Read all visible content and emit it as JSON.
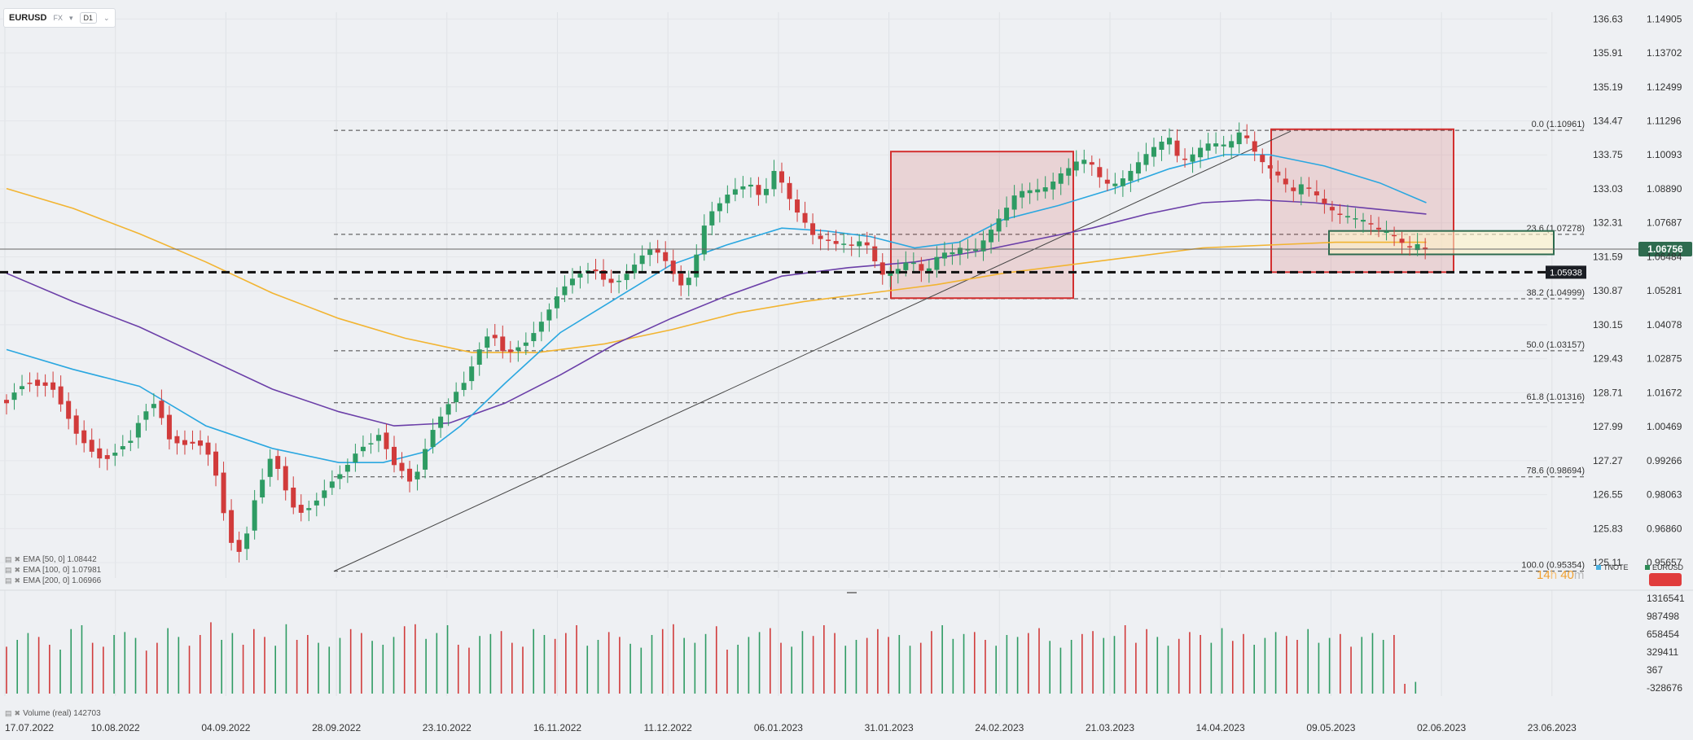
{
  "header": {
    "symbol": "EURUSD",
    "market": "FX",
    "timeframe": "D1"
  },
  "legend": [
    {
      "label": "EMA  [50, 0]  1.08442"
    },
    {
      "label": "EMA  [100, 0]  1.07981"
    },
    {
      "label": "EMA  [200, 0]  1.06966"
    }
  ],
  "volume_legend": "Volume  (real)   142703",
  "timer": {
    "hours": "14",
    "h_unit": "h",
    "minutes": "40",
    "m_unit": "m"
  },
  "top_legend": [
    {
      "label": "TNOTE",
      "color": "#4ab0e0"
    },
    {
      "label": "EURUSD",
      "color": "#2e8b57"
    }
  ],
  "colors": {
    "up": "#2e9b63",
    "down": "#d13b3b",
    "ema50": "#2aa7e0",
    "ema100": "#6b3fa8",
    "ema200": "#f2b431",
    "box_red": "#d32f2f",
    "box_green": "#2e6b4f"
  },
  "chart_data": {
    "type": "candlestick",
    "symbol": "EURUSD",
    "x_dates": [
      "17.07.2022",
      "10.08.2022",
      "04.09.2022",
      "28.09.2022",
      "23.10.2022",
      "16.11.2022",
      "11.12.2022",
      "06.01.2023",
      "31.01.2023",
      "24.02.2023",
      "21.03.2023",
      "14.04.2023",
      "09.05.2023",
      "02.06.2023",
      "23.06.2023"
    ],
    "y_right_ticks": [
      "1.14905",
      "1.13702",
      "1.12499",
      "1.11296",
      "1.10093",
      "1.08890",
      "1.07687",
      "1.06484",
      "1.05281",
      "1.04078",
      "1.02875",
      "1.01672",
      "1.00469",
      "0.99266",
      "0.98063",
      "0.96860",
      "0.95657"
    ],
    "y_left_ticks": [
      "136.63",
      "135.91",
      "135.19",
      "134.47",
      "133.75",
      "133.03",
      "132.31",
      "131.59",
      "130.87",
      "130.15",
      "129.43",
      "128.71",
      "127.99",
      "127.27",
      "126.55",
      "125.83",
      "125.11"
    ],
    "ylim": [
      0.954,
      1.15
    ],
    "current_price": "1.06756",
    "support_level": "1.05938",
    "fibonacci": [
      {
        "label": "0.0 (1.10961)",
        "value": 1.10961
      },
      {
        "label": "23.6 (1.07278)",
        "value": 1.07278
      },
      {
        "label": "38.2 (1.04999)",
        "value": 1.04999
      },
      {
        "label": "50.0 (1.03157)",
        "value": 1.03157
      },
      {
        "label": "61.8 (1.01316)",
        "value": 1.01316
      },
      {
        "label": "78.6 (0.98694)",
        "value": 0.98694
      },
      {
        "label": "100.0 (0.95354)",
        "value": 0.95354
      }
    ],
    "ema": [
      {
        "name": "EMA [50, 0]",
        "last": 1.08442
      },
      {
        "name": "EMA [100, 0]",
        "last": 1.07981
      },
      {
        "name": "EMA [200, 0]",
        "last": 1.06966
      }
    ],
    "price_path": [
      [
        0,
        1.013
      ],
      [
        10,
        1.02
      ],
      [
        20,
        1.022
      ],
      [
        28,
        1.02
      ],
      [
        40,
        1.018
      ],
      [
        50,
        1.01
      ],
      [
        62,
        1.002
      ],
      [
        75,
        0.998
      ],
      [
        88,
        0.994
      ],
      [
        100,
        0.996
      ],
      [
        112,
        0.998
      ],
      [
        122,
        1.007
      ],
      [
        135,
        1.014
      ],
      [
        147,
        1.002
      ],
      [
        160,
        0.999
      ],
      [
        170,
        0.998
      ],
      [
        180,
        0.995
      ],
      [
        190,
        0.985
      ],
      [
        198,
        0.97
      ],
      [
        206,
        0.961
      ],
      [
        214,
        0.963
      ],
      [
        222,
        0.978
      ],
      [
        230,
        0.985
      ],
      [
        240,
        0.994
      ],
      [
        250,
        0.982
      ],
      [
        262,
        0.973
      ],
      [
        275,
        0.978
      ],
      [
        290,
        0.985
      ],
      [
        305,
        0.988
      ],
      [
        318,
        0.995
      ],
      [
        330,
        0.999
      ],
      [
        338,
        1.004
      ],
      [
        347,
        0.994
      ],
      [
        357,
        0.99
      ],
      [
        367,
        0.983
      ],
      [
        375,
        0.992
      ],
      [
        385,
        1.002
      ],
      [
        395,
        1.01
      ],
      [
        405,
        1.018
      ],
      [
        415,
        1.023
      ],
      [
        423,
        1.03
      ],
      [
        433,
        1.036
      ],
      [
        443,
        1.034
      ],
      [
        450,
        1.028
      ],
      [
        460,
        1.032
      ],
      [
        470,
        1.036
      ],
      [
        480,
        1.042
      ],
      [
        490,
        1.047
      ],
      [
        498,
        1.051
      ],
      [
        510,
        1.055
      ],
      [
        520,
        1.058
      ],
      [
        530,
        1.061
      ],
      [
        540,
        1.058
      ],
      [
        550,
        1.057
      ],
      [
        560,
        1.059
      ],
      [
        570,
        1.062
      ],
      [
        580,
        1.066
      ],
      [
        592,
        1.065
      ],
      [
        602,
        1.06
      ],
      [
        612,
        1.055
      ],
      [
        622,
        1.065
      ],
      [
        632,
        1.078
      ],
      [
        642,
        1.081
      ],
      [
        652,
        1.086
      ],
      [
        662,
        1.09
      ],
      [
        672,
        1.092
      ],
      [
        682,
        1.087
      ],
      [
        694,
        1.096
      ],
      [
        702,
        1.088
      ],
      [
        711,
        1.08
      ],
      [
        719,
        1.077
      ],
      [
        730,
        1.072
      ],
      [
        740,
        1.073
      ],
      [
        748,
        1.071
      ],
      [
        756,
        1.07
      ],
      [
        764,
        1.068
      ],
      [
        772,
        1.069
      ],
      [
        780,
        1.066
      ],
      [
        786,
        1.06
      ],
      [
        792,
        1.058
      ],
      [
        800,
        1.061
      ],
      [
        808,
        1.063
      ],
      [
        816,
        1.066
      ],
      [
        824,
        1.06
      ],
      [
        832,
        1.059
      ],
      [
        840,
        1.063
      ],
      [
        848,
        1.065
      ],
      [
        856,
        1.066
      ],
      [
        864,
        1.07
      ],
      [
        872,
        1.068
      ],
      [
        882,
        1.072
      ],
      [
        892,
        1.076
      ],
      [
        902,
        1.08
      ],
      [
        912,
        1.086
      ],
      [
        922,
        1.088
      ],
      [
        932,
        1.09
      ],
      [
        942,
        1.092
      ],
      [
        950,
        1.095
      ],
      [
        960,
        1.096
      ],
      [
        970,
        1.098
      ],
      [
        980,
        1.096
      ],
      [
        990,
        1.091
      ],
      [
        1000,
        1.092
      ],
      [
        1010,
        1.095
      ],
      [
        1020,
        1.098
      ],
      [
        1032,
        1.101
      ],
      [
        1040,
        1.103
      ],
      [
        1050,
        1.106
      ],
      [
        1058,
        1.1
      ],
      [
        1066,
        1.101
      ],
      [
        1074,
        1.104
      ],
      [
        1082,
        1.106
      ],
      [
        1090,
        1.105
      ],
      [
        1098,
        1.103
      ],
      [
        1106,
        1.104
      ],
      [
        1114,
        1.108
      ],
      [
        1122,
        1.106
      ],
      [
        1130,
        1.101
      ],
      [
        1138,
        1.099
      ],
      [
        1146,
        1.096
      ],
      [
        1154,
        1.091
      ],
      [
        1162,
        1.087
      ],
      [
        1170,
        1.089
      ],
      [
        1178,
        1.087
      ],
      [
        1186,
        1.085
      ],
      [
        1194,
        1.083
      ],
      [
        1202,
        1.082
      ],
      [
        1210,
        1.081
      ],
      [
        1218,
        1.079
      ],
      [
        1226,
        1.077
      ],
      [
        1234,
        1.074
      ],
      [
        1242,
        1.072
      ],
      [
        1250,
        1.073
      ],
      [
        1258,
        1.071
      ],
      [
        1266,
        1.07
      ],
      [
        1274,
        1.071
      ],
      [
        1282,
        1.068
      ]
    ],
    "ema50_path": [
      [
        0,
        1.032
      ],
      [
        60,
        1.025
      ],
      [
        120,
        1.019
      ],
      [
        180,
        1.005
      ],
      [
        240,
        0.997
      ],
      [
        300,
        0.992
      ],
      [
        340,
        0.992
      ],
      [
        380,
        0.996
      ],
      [
        410,
        1.005
      ],
      [
        450,
        1.02
      ],
      [
        500,
        1.038
      ],
      [
        550,
        1.05
      ],
      [
        600,
        1.062
      ],
      [
        650,
        1.069
      ],
      [
        700,
        1.075
      ],
      [
        740,
        1.074
      ],
      [
        780,
        1.072
      ],
      [
        820,
        1.068
      ],
      [
        860,
        1.07
      ],
      [
        900,
        1.078
      ],
      [
        950,
        1.083
      ],
      [
        1000,
        1.089
      ],
      [
        1050,
        1.096
      ],
      [
        1100,
        1.101
      ],
      [
        1140,
        1.101
      ],
      [
        1190,
        1.097
      ],
      [
        1240,
        1.091
      ],
      [
        1282,
        1.084
      ]
    ],
    "ema100_path": [
      [
        0,
        1.059
      ],
      [
        60,
        1.049
      ],
      [
        120,
        1.04
      ],
      [
        180,
        1.029
      ],
      [
        240,
        1.018
      ],
      [
        300,
        1.01
      ],
      [
        350,
        1.005
      ],
      [
        400,
        1.006
      ],
      [
        450,
        1.013
      ],
      [
        500,
        1.023
      ],
      [
        550,
        1.034
      ],
      [
        600,
        1.043
      ],
      [
        650,
        1.051
      ],
      [
        700,
        1.058
      ],
      [
        760,
        1.061
      ],
      [
        820,
        1.063
      ],
      [
        880,
        1.067
      ],
      [
        930,
        1.071
      ],
      [
        980,
        1.075
      ],
      [
        1030,
        1.08
      ],
      [
        1080,
        1.084
      ],
      [
        1130,
        1.085
      ],
      [
        1180,
        1.084
      ],
      [
        1230,
        1.082
      ],
      [
        1282,
        1.08
      ]
    ],
    "ema200_path": [
      [
        0,
        1.089
      ],
      [
        60,
        1.082
      ],
      [
        120,
        1.073
      ],
      [
        180,
        1.063
      ],
      [
        240,
        1.052
      ],
      [
        300,
        1.043
      ],
      [
        360,
        1.036
      ],
      [
        420,
        1.031
      ],
      [
        480,
        1.031
      ],
      [
        540,
        1.034
      ],
      [
        600,
        1.039
      ],
      [
        660,
        1.045
      ],
      [
        720,
        1.049
      ],
      [
        780,
        1.052
      ],
      [
        840,
        1.055
      ],
      [
        900,
        1.059
      ],
      [
        960,
        1.062
      ],
      [
        1020,
        1.065
      ],
      [
        1080,
        1.068
      ],
      [
        1140,
        1.069
      ],
      [
        1200,
        1.07
      ],
      [
        1282,
        1.07
      ]
    ],
    "volume_ticks": [
      "1316541",
      "987498",
      "658454",
      "329411",
      "367",
      "-328676"
    ],
    "volume_bars": [
      48,
      55,
      62,
      58,
      50,
      45,
      66,
      70,
      52,
      48,
      60,
      63,
      57,
      44,
      52,
      67,
      58,
      49,
      60,
      73,
      55,
      62,
      50,
      66,
      58,
      49,
      71,
      55,
      60,
      52,
      48,
      57,
      66,
      62,
      54,
      50,
      58,
      69,
      71,
      56,
      62,
      70,
      50,
      47,
      59,
      61,
      64,
      52,
      48,
      66,
      60,
      56,
      62,
      70,
      49,
      55,
      63,
      58,
      51,
      47,
      60,
      66,
      71,
      57,
      52,
      61,
      69,
      45,
      50,
      58,
      63,
      67,
      52,
      48,
      64,
      59,
      70,
      62,
      49,
      55,
      57,
      66,
      58,
      60,
      49,
      52,
      64,
      70,
      56,
      61,
      63,
      55,
      49,
      60,
      58,
      62,
      67,
      54,
      47,
      55,
      61,
      64,
      57,
      59,
      70,
      52,
      66,
      58,
      49,
      56,
      63,
      60,
      52,
      67,
      54,
      61,
      50,
      57,
      63,
      59,
      55,
      66,
      52,
      57,
      61,
      48,
      58,
      62,
      55,
      60,
      10,
      12
    ]
  }
}
